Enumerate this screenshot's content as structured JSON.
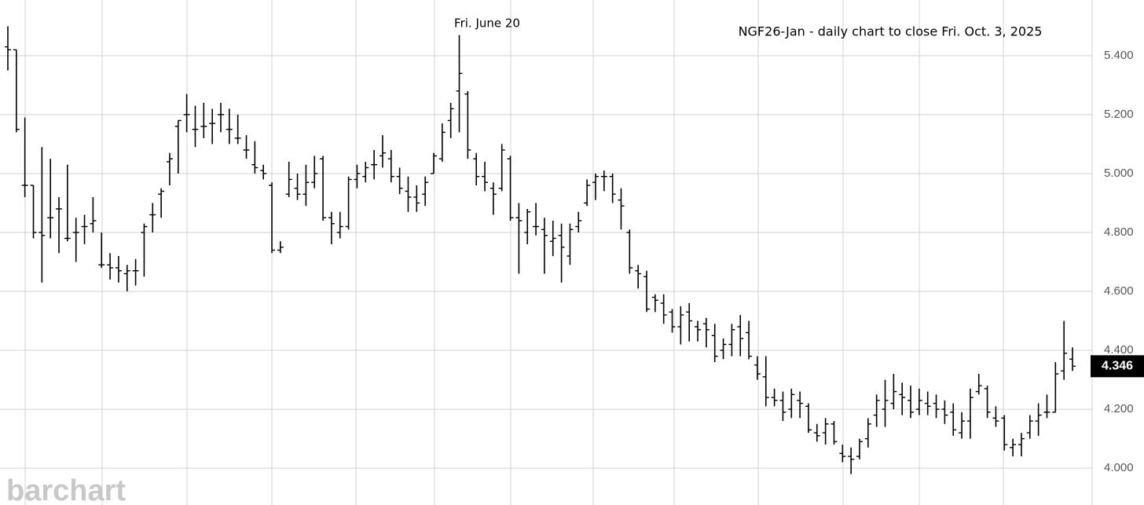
{
  "chart_data": {
    "type": "ohlc",
    "title": "NGF26-Jan - daily chart to close Fri. Oct. 3, 2025",
    "annotations": [
      "Fri. June 20"
    ],
    "watermark": "barchart",
    "color": "#000000",
    "grid": true,
    "ylim": [
      3.875,
      5.589
    ],
    "yticks": [
      {
        "value": 4.0,
        "label": "4.000"
      },
      {
        "value": 4.2,
        "label": "4.200"
      },
      {
        "value": 4.4,
        "label": "4.400"
      },
      {
        "value": 4.6,
        "label": "4.600"
      },
      {
        "value": 4.8,
        "label": "4.800"
      },
      {
        "value": 5.0,
        "label": "5.000"
      },
      {
        "value": 5.2,
        "label": "5.200"
      },
      {
        "value": 5.4,
        "label": "5.400"
      }
    ],
    "open": [
      5.43,
      5.42,
      4.96,
      4.96,
      4.8,
      4.85,
      4.88,
      4.78,
      4.8,
      4.82,
      4.83,
      4.69,
      4.69,
      4.68,
      4.66,
      4.67,
      4.8,
      4.86,
      4.93,
      5.04,
      5.16,
      5.2,
      5.15,
      5.16,
      5.17,
      5.2,
      5.15,
      5.12,
      5.08,
      5.03,
      5.01,
      4.96,
      4.74,
      4.93,
      4.95,
      4.93,
      4.97,
      5.05,
      4.85,
      4.8,
      4.82,
      4.98,
      4.99,
      5.03,
      5.06,
      5.05,
      4.99,
      4.94,
      4.92,
      4.93,
      5.0,
      5.05,
      5.18,
      5.28,
      5.27,
      5.05,
      4.99,
      4.95,
      4.95,
      5.05,
      4.85,
      4.8,
      4.82,
      4.81,
      4.77,
      4.79,
      4.72,
      4.82,
      4.9,
      4.97,
      4.99,
      4.99,
      4.91,
      4.8,
      4.67,
      4.65,
      4.58,
      4.56,
      4.53,
      4.48,
      4.53,
      4.48,
      4.49,
      4.45,
      4.4,
      4.42,
      4.48,
      4.46,
      4.35,
      4.31,
      4.24,
      4.23,
      4.2,
      4.23,
      4.21,
      4.12,
      4.12,
      4.15,
      4.05,
      4.04,
      4.04,
      4.1,
      4.18,
      4.2,
      4.22,
      4.25,
      4.23,
      4.2,
      4.22,
      4.22,
      4.2,
      4.19,
      4.12,
      4.16,
      4.26,
      4.27,
      4.17,
      4.17,
      4.07,
      4.08,
      4.12,
      4.16,
      4.19,
      4.19,
      4.33,
      4.37
    ],
    "high": [
      5.5,
      5.42,
      5.19,
      4.96,
      5.09,
      5.05,
      4.92,
      5.03,
      4.85,
      4.86,
      4.92,
      4.8,
      4.73,
      4.72,
      4.69,
      4.71,
      4.83,
      4.9,
      4.95,
      5.07,
      5.18,
      5.27,
      5.23,
      5.24,
      5.22,
      5.24,
      5.22,
      5.2,
      5.13,
      5.11,
      5.03,
      4.97,
      4.77,
      5.04,
      5.0,
      5.03,
      5.06,
      5.06,
      4.87,
      4.87,
      4.99,
      5.03,
      5.04,
      5.08,
      5.13,
      5.08,
      5.02,
      4.99,
      4.96,
      4.99,
      5.07,
      5.17,
      5.24,
      5.47,
      5.28,
      5.07,
      5.04,
      4.97,
      5.1,
      5.06,
      4.9,
      4.88,
      4.9,
      4.85,
      4.84,
      4.83,
      4.83,
      4.87,
      4.98,
      5.0,
      5.01,
      5.0,
      4.95,
      4.81,
      4.69,
      4.67,
      4.59,
      4.59,
      4.54,
      4.55,
      4.56,
      4.5,
      4.51,
      4.49,
      4.44,
      4.49,
      4.52,
      4.5,
      4.38,
      4.38,
      4.27,
      4.26,
      4.27,
      4.26,
      4.22,
      4.15,
      4.17,
      4.16,
      4.08,
      4.07,
      4.1,
      4.17,
      4.25,
      4.3,
      4.32,
      4.29,
      4.28,
      4.27,
      4.26,
      4.25,
      4.23,
      4.22,
      4.19,
      4.27,
      4.32,
      4.28,
      4.21,
      4.18,
      4.1,
      4.12,
      4.18,
      4.22,
      4.25,
      4.36,
      4.5,
      4.41
    ],
    "low": [
      5.35,
      5.14,
      4.92,
      4.78,
      4.63,
      4.78,
      4.73,
      4.77,
      4.7,
      4.76,
      4.8,
      4.68,
      4.64,
      4.63,
      4.6,
      4.62,
      4.65,
      4.8,
      4.85,
      4.96,
      5.0,
      5.14,
      5.09,
      5.12,
      5.1,
      5.14,
      5.1,
      5.1,
      5.05,
      5.0,
      4.98,
      4.73,
      4.73,
      4.92,
      4.91,
      4.89,
      4.95,
      4.84,
      4.76,
      4.78,
      4.81,
      4.95,
      4.97,
      4.98,
      5.02,
      4.97,
      4.93,
      4.87,
      4.87,
      4.89,
      5.0,
      5.04,
      5.12,
      5.14,
      5.05,
      4.96,
      4.94,
      4.86,
      4.94,
      4.84,
      4.66,
      4.76,
      4.79,
      4.66,
      4.72,
      4.63,
      4.69,
      4.8,
      4.89,
      4.91,
      4.94,
      4.9,
      4.81,
      4.66,
      4.61,
      4.53,
      4.53,
      4.49,
      4.46,
      4.42,
      4.43,
      4.43,
      4.41,
      4.36,
      4.37,
      4.38,
      4.38,
      4.37,
      4.3,
      4.21,
      4.21,
      4.16,
      4.17,
      4.17,
      4.12,
      4.09,
      4.08,
      4.08,
      4.02,
      3.98,
      4.03,
      4.07,
      4.14,
      4.14,
      4.2,
      4.18,
      4.17,
      4.18,
      4.18,
      4.17,
      4.15,
      4.11,
      4.1,
      4.1,
      4.25,
      4.17,
      4.14,
      4.06,
      4.04,
      4.04,
      4.1,
      4.11,
      4.17,
      4.19,
      4.3,
      4.33
    ],
    "close": [
      5.42,
      5.15,
      4.96,
      4.8,
      4.79,
      4.85,
      4.88,
      4.78,
      4.8,
      4.82,
      4.84,
      4.69,
      4.68,
      4.67,
      4.67,
      4.67,
      4.82,
      4.86,
      4.94,
      5.05,
      5.18,
      5.2,
      5.15,
      5.16,
      5.17,
      5.2,
      5.15,
      5.12,
      5.08,
      5.02,
      5.0,
      4.74,
      4.75,
      4.98,
      4.93,
      4.97,
      5.0,
      4.85,
      4.83,
      4.82,
      4.98,
      5.0,
      5.02,
      5.03,
      5.07,
      4.99,
      4.95,
      4.92,
      4.9,
      4.97,
      5.06,
      5.14,
      5.22,
      5.34,
      5.08,
      4.99,
      4.97,
      4.93,
      5.08,
      4.85,
      4.84,
      4.87,
      4.82,
      4.79,
      4.78,
      4.75,
      4.81,
      4.84,
      4.96,
      4.99,
      4.99,
      4.93,
      4.89,
      4.68,
      4.66,
      4.54,
      4.57,
      4.52,
      4.48,
      4.52,
      4.5,
      4.47,
      4.47,
      4.38,
      4.42,
      4.47,
      4.44,
      4.38,
      4.32,
      4.24,
      4.23,
      4.19,
      4.25,
      4.22,
      4.13,
      4.11,
      4.15,
      4.09,
      4.04,
      4.03,
      4.09,
      4.15,
      4.23,
      4.23,
      4.26,
      4.24,
      4.19,
      4.23,
      4.21,
      4.2,
      4.18,
      4.13,
      4.16,
      4.24,
      4.28,
      4.19,
      4.16,
      4.08,
      4.08,
      4.1,
      4.16,
      4.18,
      4.19,
      4.32,
      4.39,
      4.346
    ]
  }
}
